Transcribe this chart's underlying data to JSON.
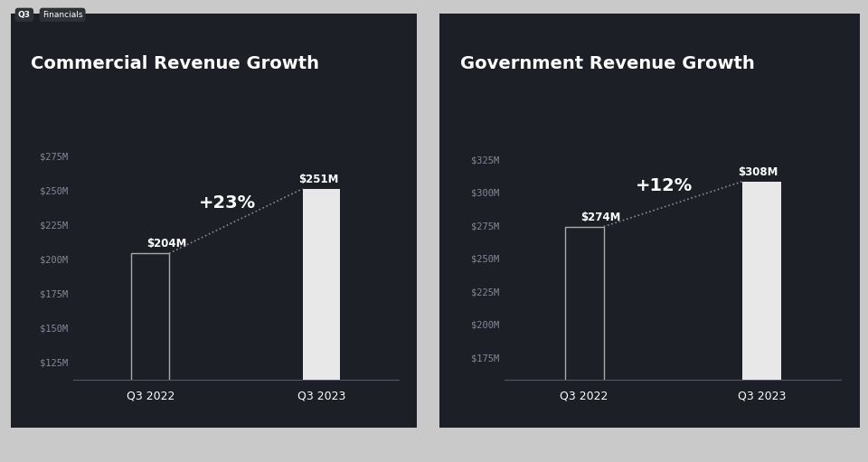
{
  "background_outer": "#c9c9c9",
  "background_card": "#1c1f26",
  "bar_fill_outline": "#1c1f26",
  "bar_fill_solid": "#e8e8e8",
  "bar_edge_color": "#aaaaaa",
  "text_color": "#ffffff",
  "tick_color": "#888899",
  "dashed_line_color": "#888899",
  "bottom_line_color": "#555566",
  "commercial": {
    "title": "Commercial Revenue Growth",
    "categories": [
      "Q3 2022",
      "Q3 2023"
    ],
    "values": [
      204,
      251
    ],
    "labels": [
      "$204M",
      "$251M"
    ],
    "growth_text": "+23%",
    "ylim_min": 112,
    "ylim_max": 285,
    "yticks": [
      125,
      150,
      175,
      200,
      225,
      250,
      275
    ],
    "ytick_labels": [
      "$125M",
      "$150M",
      "$175M",
      "$200M",
      "$225M",
      "$250M",
      "$275M"
    ]
  },
  "government": {
    "title": "Government Revenue Growth",
    "categories": [
      "Q3 2022",
      "Q3 2023"
    ],
    "values": [
      274,
      308
    ],
    "labels": [
      "$274M",
      "$308M"
    ],
    "growth_text": "+12%",
    "ylim_min": 158,
    "ylim_max": 338,
    "yticks": [
      175,
      200,
      225,
      250,
      275,
      300,
      325
    ],
    "ytick_labels": [
      "$175M",
      "$200M",
      "$225M",
      "$250M",
      "$275M",
      "$300M",
      "$325M"
    ]
  },
  "top_label_text": "Q3",
  "top_tag_text": "Financials"
}
